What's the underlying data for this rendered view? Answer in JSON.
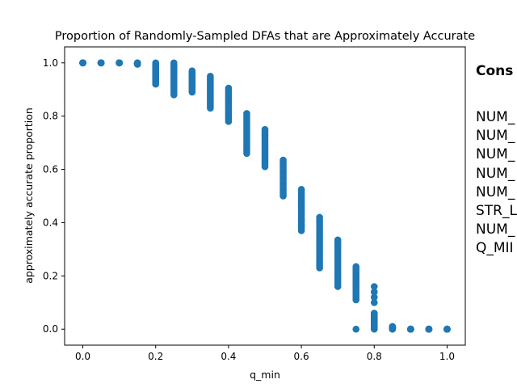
{
  "chart_data": {
    "type": "scatter",
    "title": "Proportion of Randomly-Sampled DFAs that are Approximately Accurate",
    "xlabel": "q_min",
    "ylabel": "approximately accurate proportion",
    "xlim": [
      -0.05,
      1.05
    ],
    "ylim": [
      -0.06,
      1.06
    ],
    "xticks": [
      0.0,
      0.2,
      0.4,
      0.6,
      0.8,
      1.0
    ],
    "yticks": [
      0.0,
      0.2,
      0.4,
      0.6,
      0.8,
      1.0
    ],
    "grid": false,
    "marker_color": "#1f77b4",
    "groups": [
      {
        "x": 0.0,
        "y_min": 1.0,
        "y_max": 1.0
      },
      {
        "x": 0.05,
        "y_min": 1.0,
        "y_max": 1.0
      },
      {
        "x": 0.1,
        "y_min": 1.0,
        "y_max": 1.0
      },
      {
        "x": 0.15,
        "y_min": 0.995,
        "y_max": 1.0
      },
      {
        "x": 0.2,
        "y_min": 0.92,
        "y_max": 1.0
      },
      {
        "x": 0.25,
        "y_min": 0.88,
        "y_max": 1.0
      },
      {
        "x": 0.3,
        "y_min": 0.89,
        "y_max": 0.97
      },
      {
        "x": 0.35,
        "y_min": 0.83,
        "y_max": 0.95
      },
      {
        "x": 0.4,
        "y_min": 0.78,
        "y_max": 0.905
      },
      {
        "x": 0.45,
        "y_min": 0.66,
        "y_max": 0.81
      },
      {
        "x": 0.5,
        "y_min": 0.61,
        "y_max": 0.75
      },
      {
        "x": 0.55,
        "y_min": 0.5,
        "y_max": 0.635
      },
      {
        "x": 0.6,
        "y_min": 0.37,
        "y_max": 0.525
      },
      {
        "x": 0.65,
        "y_min": 0.23,
        "y_max": 0.42
      },
      {
        "x": 0.7,
        "y_min": 0.16,
        "y_max": 0.335
      },
      {
        "x": 0.75,
        "y_min": 0.11,
        "y_max": 0.235,
        "extra": [
          0.0
        ]
      },
      {
        "x": 0.8,
        "y_min": 0.0,
        "y_max": 0.06,
        "extra": [
          0.1,
          0.12,
          0.14,
          0.16
        ]
      },
      {
        "x": 0.85,
        "y_min": 0.0,
        "y_max": 0.01
      },
      {
        "x": 0.9,
        "y_min": 0.0,
        "y_max": 0.0
      },
      {
        "x": 0.95,
        "y_min": 0.0,
        "y_max": 0.0
      },
      {
        "x": 1.0,
        "y_min": 0.0,
        "y_max": 0.0
      }
    ]
  },
  "sidebar": {
    "title": "Cons",
    "items": [
      "NUM_",
      "NUM_",
      "NUM_",
      "NUM_",
      "NUM_",
      "STR_L",
      "NUM_",
      "Q_MII"
    ]
  }
}
